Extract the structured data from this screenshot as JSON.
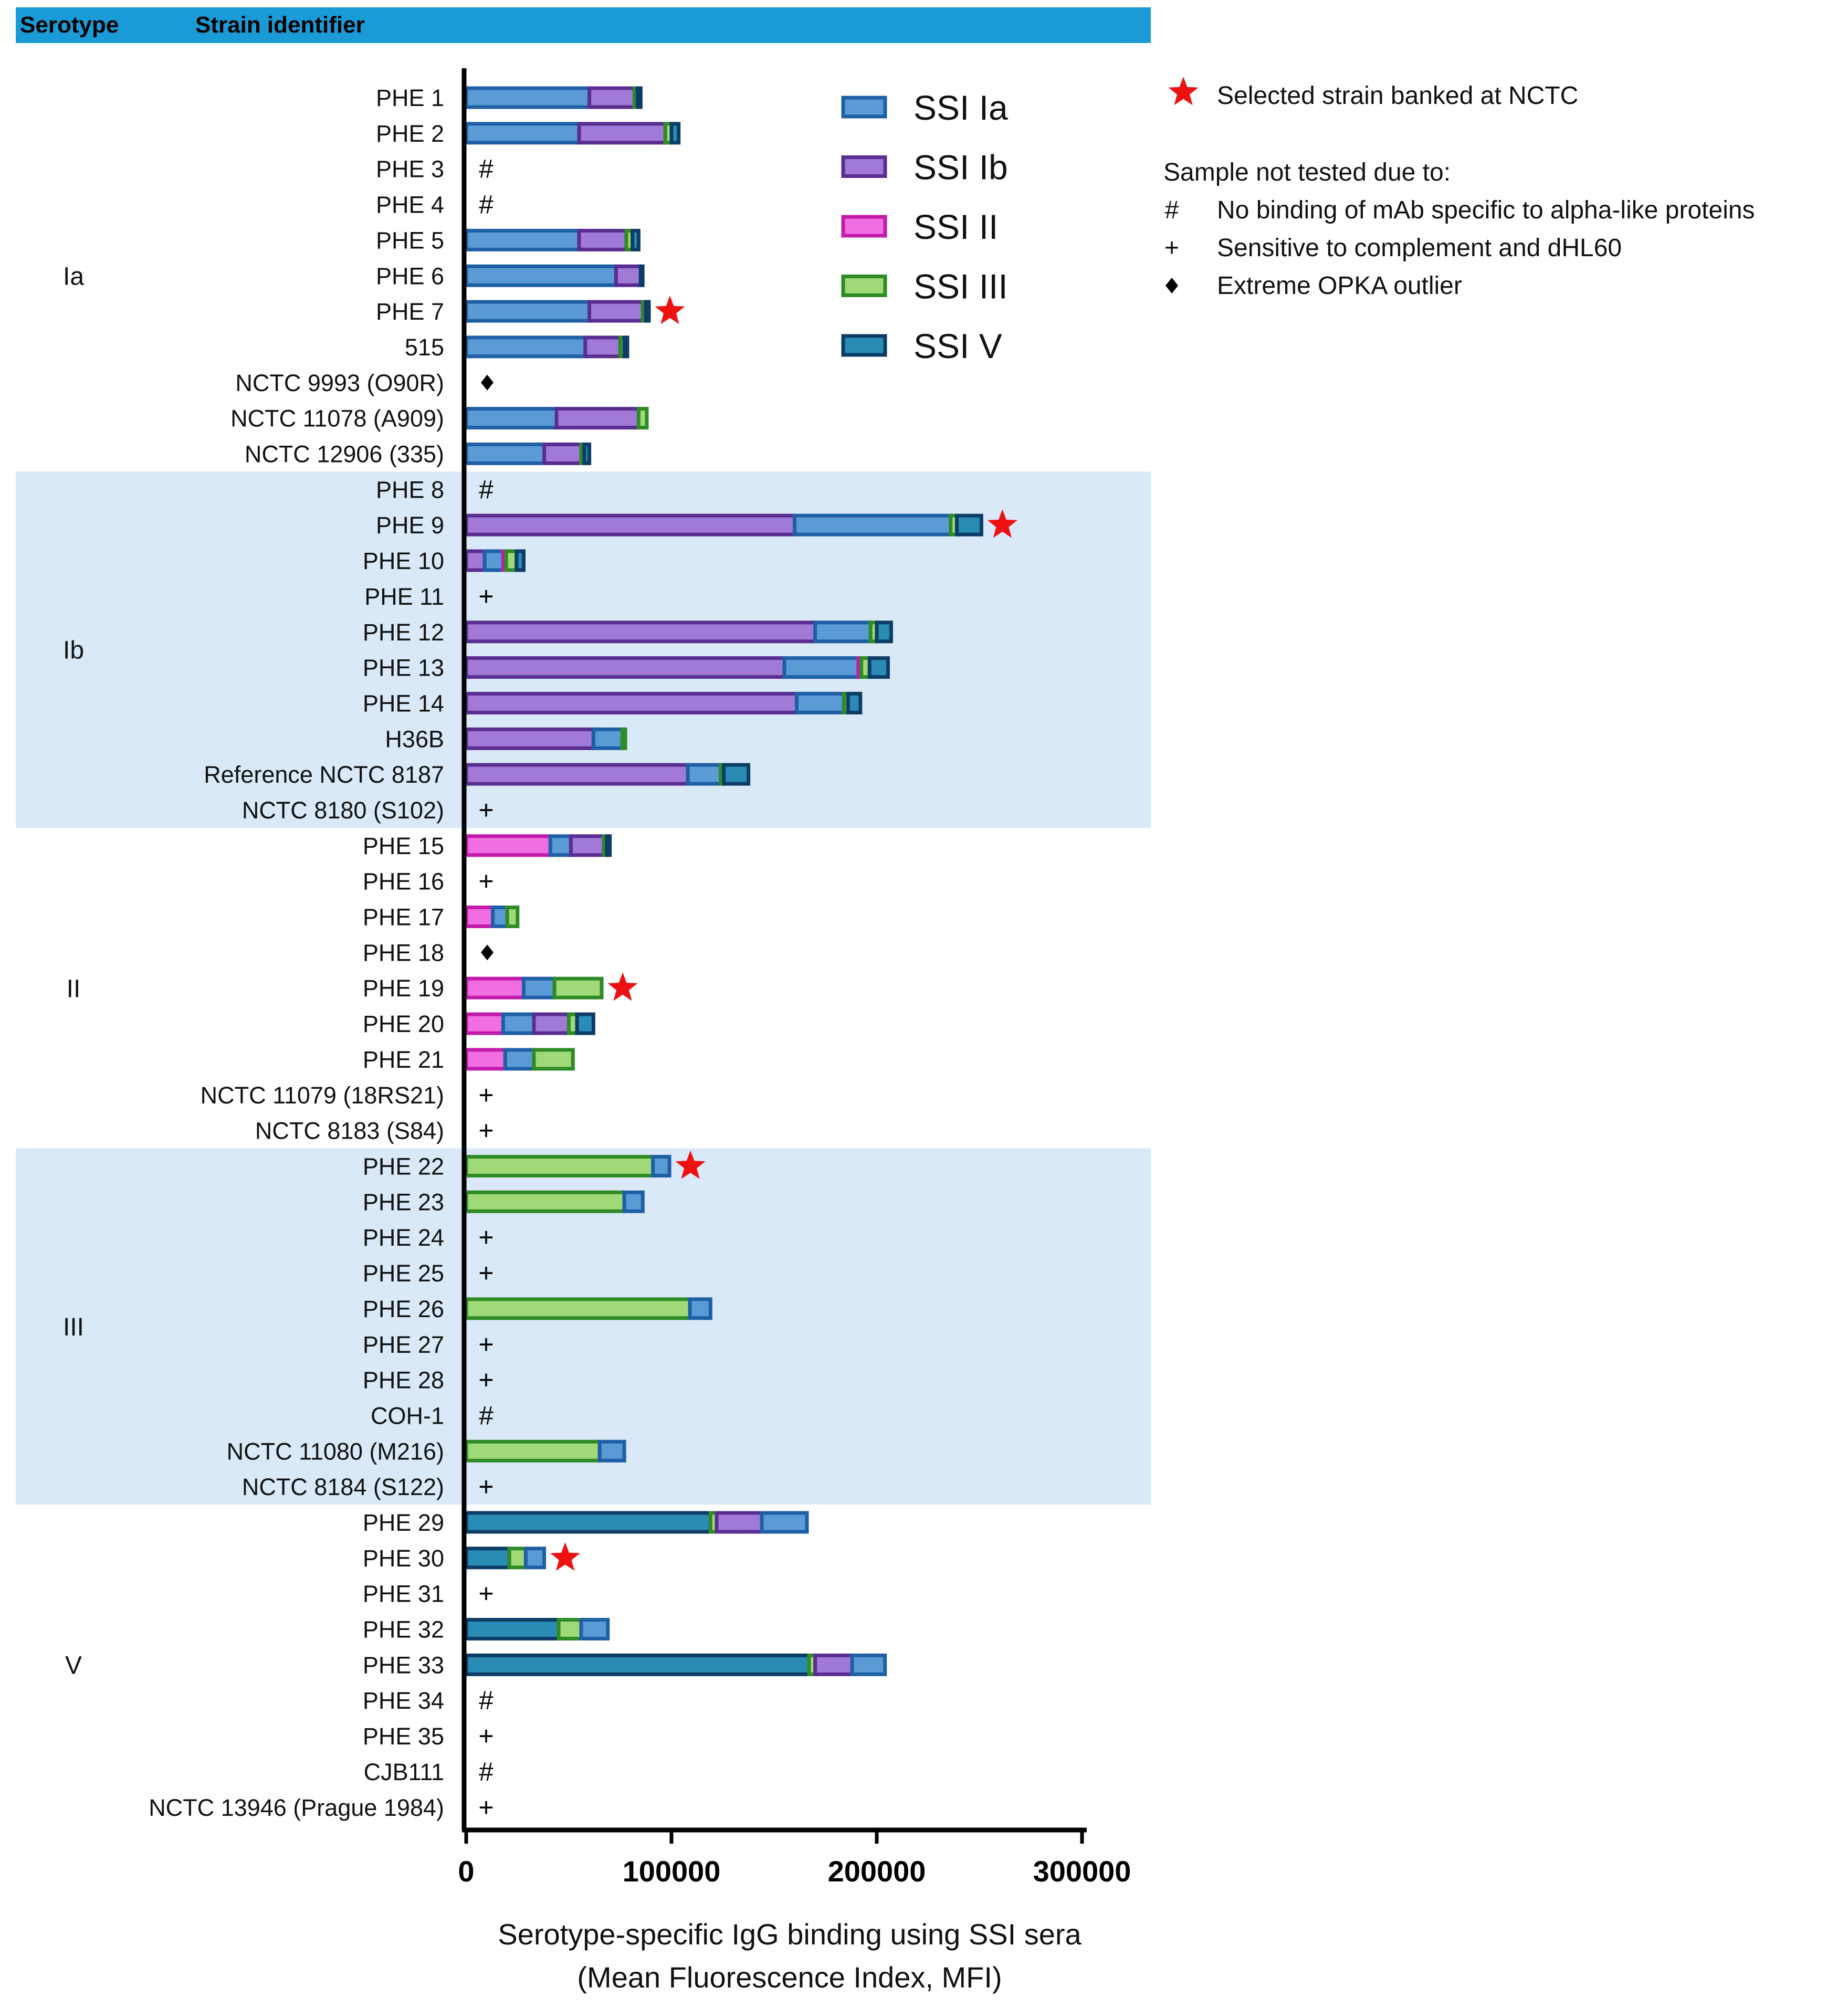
{
  "chart_data": {
    "type": "bar",
    "orientation": "horizontal",
    "stacked": true,
    "header": {
      "serotype_label": "Serotype",
      "strain_label": "Strain identifier"
    },
    "xlabel_line1": "Serotype-specific IgG binding using SSI sera",
    "xlabel_line2": "(Mean Fluorescence Index, MFI)",
    "xlim": [
      0,
      300000
    ],
    "xticks": [
      "0",
      "100000",
      "200000",
      "300000"
    ],
    "xtick_values": [
      0,
      100000,
      200000,
      300000
    ],
    "legend_position": "top-right",
    "series": [
      {
        "name": "SSI Ia",
        "fill": "#5b9bd5",
        "edge": "#1f5fa6"
      },
      {
        "name": "SSI Ib",
        "fill": "#a07ad6",
        "edge": "#5a2e91"
      },
      {
        "name": "SSI II",
        "fill": "#f06ee0",
        "edge": "#c21bab"
      },
      {
        "name": "SSI III",
        "fill": "#9fd978",
        "edge": "#2e8b25"
      },
      {
        "name": "SSI V",
        "fill": "#2a8cb5",
        "edge": "#0d3d66"
      }
    ],
    "notes": {
      "selected": "Selected strain banked at NCTC",
      "not_tested_title": "Sample not tested due to:",
      "reasons": [
        {
          "symbol": "#",
          "text": "No binding of mAb specific to alpha-like proteins"
        },
        {
          "symbol": "+",
          "text": "Sensitive to complement and dHL60"
        },
        {
          "symbol": "◆",
          "text": "Extreme OPKA outlier"
        }
      ]
    },
    "groups": [
      {
        "serotype": "Ia",
        "shaded": false,
        "strains": [
          {
            "label": "PHE 1",
            "segments": [
              [
                "SSI Ia",
                60000
              ],
              [
                "SSI Ib",
                22000
              ],
              [
                "SSI III",
                1500
              ],
              [
                "SSI V",
                1500
              ]
            ]
          },
          {
            "label": "PHE 2",
            "segments": [
              [
                "SSI Ia",
                55000
              ],
              [
                "SSI Ib",
                42000
              ],
              [
                "SSI III",
                3000
              ],
              [
                "SSI V",
                3500
              ]
            ]
          },
          {
            "label": "PHE 3",
            "marker": "#"
          },
          {
            "label": "PHE 4",
            "marker": "#"
          },
          {
            "label": "PHE 5",
            "segments": [
              [
                "SSI Ia",
                55000
              ],
              [
                "SSI Ib",
                23000
              ],
              [
                "SSI III",
                3000
              ],
              [
                "SSI V",
                3000
              ]
            ]
          },
          {
            "label": "PHE 6",
            "segments": [
              [
                "SSI Ia",
                73000
              ],
              [
                "SSI Ib",
                12000
              ],
              [
                "SSI V",
                1000
              ]
            ]
          },
          {
            "label": "PHE 7",
            "segments": [
              [
                "SSI Ia",
                60000
              ],
              [
                "SSI Ib",
                26000
              ],
              [
                "SSI III",
                1500
              ],
              [
                "SSI V",
                1500
              ]
            ],
            "selected": true
          },
          {
            "label": "515",
            "segments": [
              [
                "SSI Ia",
                58000
              ],
              [
                "SSI Ib",
                17000
              ],
              [
                "SSI III",
                2000
              ],
              [
                "SSI V",
                1500
              ]
            ]
          },
          {
            "label": "NCTC 9993 (O90R)",
            "marker": "◆"
          },
          {
            "label": "NCTC 11078 (A909)",
            "segments": [
              [
                "SSI Ia",
                44000
              ],
              [
                "SSI Ib",
                40000
              ],
              [
                "SSI III",
                4000
              ]
            ]
          },
          {
            "label": "NCTC 12906 (335)",
            "segments": [
              [
                "SSI Ia",
                38000
              ],
              [
                "SSI Ib",
                18000
              ],
              [
                "SSI III",
                1500
              ],
              [
                "SSI V",
                2500
              ]
            ]
          }
        ]
      },
      {
        "serotype": "Ib",
        "shaded": true,
        "strains": [
          {
            "label": "PHE 8",
            "marker": "#"
          },
          {
            "label": "PHE 9",
            "segments": [
              [
                "SSI Ib",
                160000
              ],
              [
                "SSI Ia",
                76000
              ],
              [
                "SSI III",
                3000
              ],
              [
                "SSI V",
                12000
              ]
            ],
            "selected": true
          },
          {
            "label": "PHE 10",
            "segments": [
              [
                "SSI Ib",
                9000
              ],
              [
                "SSI Ia",
                9000
              ],
              [
                "SSI II",
                1500
              ],
              [
                "SSI III",
                5000
              ],
              [
                "SSI V",
                3500
              ]
            ]
          },
          {
            "label": "PHE 11",
            "marker": "+"
          },
          {
            "label": "PHE 12",
            "segments": [
              [
                "SSI Ib",
                170000
              ],
              [
                "SSI Ia",
                27000
              ],
              [
                "SSI III",
                3000
              ],
              [
                "SSI V",
                7000
              ]
            ]
          },
          {
            "label": "PHE 13",
            "segments": [
              [
                "SSI Ib",
                155000
              ],
              [
                "SSI Ia",
                36000
              ],
              [
                "SSI II",
                1500
              ],
              [
                "SSI III",
                4000
              ],
              [
                "SSI V",
                9000
              ]
            ]
          },
          {
            "label": "PHE 14",
            "segments": [
              [
                "SSI Ib",
                161000
              ],
              [
                "SSI Ia",
                23000
              ],
              [
                "SSI III",
                2000
              ],
              [
                "SSI V",
                6000
              ]
            ]
          },
          {
            "label": "H36B",
            "segments": [
              [
                "SSI Ib",
                62000
              ],
              [
                "SSI Ia",
                14000
              ],
              [
                "SSI III",
                1500
              ]
            ]
          },
          {
            "label": "Reference NCTC 8187",
            "segments": [
              [
                "SSI Ib",
                108000
              ],
              [
                "SSI Ia",
                16000
              ],
              [
                "SSI III",
                1500
              ],
              [
                "SSI V",
                12000
              ]
            ]
          },
          {
            "label": "NCTC 8180 (S102)",
            "marker": "+"
          }
        ]
      },
      {
        "serotype": "II",
        "shaded": false,
        "strains": [
          {
            "label": "PHE 15",
            "segments": [
              [
                "SSI II",
                41000
              ],
              [
                "SSI Ia",
                10000
              ],
              [
                "SSI Ib",
                16000
              ],
              [
                "SSI III",
                1500
              ],
              [
                "SSI V",
                1500
              ]
            ]
          },
          {
            "label": "PHE 16",
            "marker": "+"
          },
          {
            "label": "PHE 17",
            "segments": [
              [
                "SSI II",
                13000
              ],
              [
                "SSI Ia",
                7000
              ],
              [
                "SSI III",
                5000
              ]
            ]
          },
          {
            "label": "PHE 18",
            "marker": "◆"
          },
          {
            "label": "PHE 19",
            "segments": [
              [
                "SSI II",
                28000
              ],
              [
                "SSI Ia",
                15000
              ],
              [
                "SSI III",
                23000
              ]
            ],
            "selected": true
          },
          {
            "label": "PHE 20",
            "segments": [
              [
                "SSI II",
                18000
              ],
              [
                "SSI Ia",
                15000
              ],
              [
                "SSI Ib",
                17000
              ],
              [
                "SSI III",
                4000
              ],
              [
                "SSI V",
                8000
              ]
            ]
          },
          {
            "label": "PHE 21",
            "segments": [
              [
                "SSI II",
                19000
              ],
              [
                "SSI Ia",
                14000
              ],
              [
                "SSI III",
                19000
              ]
            ]
          },
          {
            "label": "NCTC 11079 (18RS21)",
            "marker": "+"
          },
          {
            "label": "NCTC 8183 (S84)",
            "marker": "+"
          }
        ]
      },
      {
        "serotype": "III",
        "shaded": true,
        "strains": [
          {
            "label": "PHE 22",
            "segments": [
              [
                "SSI III",
                91000
              ],
              [
                "SSI Ia",
                8000
              ]
            ],
            "selected": true
          },
          {
            "label": "PHE 23",
            "segments": [
              [
                "SSI III",
                77000
              ],
              [
                "SSI Ia",
                9000
              ]
            ]
          },
          {
            "label": "PHE 24",
            "marker": "+"
          },
          {
            "label": "PHE 25",
            "marker": "+"
          },
          {
            "label": "PHE 26",
            "segments": [
              [
                "SSI III",
                109000
              ],
              [
                "SSI Ia",
                10000
              ]
            ]
          },
          {
            "label": "PHE 27",
            "marker": "+"
          },
          {
            "label": "PHE 28",
            "marker": "+"
          },
          {
            "label": "COH-1",
            "marker": "#"
          },
          {
            "label": "NCTC 11080 (M216)",
            "segments": [
              [
                "SSI III",
                65000
              ],
              [
                "SSI Ia",
                12000
              ]
            ]
          },
          {
            "label": "NCTC 8184 (S122)",
            "marker": "+"
          }
        ]
      },
      {
        "serotype": "V",
        "shaded": false,
        "strains": [
          {
            "label": "PHE 29",
            "segments": [
              [
                "SSI V",
                119000
              ],
              [
                "SSI III",
                3000
              ],
              [
                "SSI Ib",
                22000
              ],
              [
                "SSI Ia",
                22000
              ]
            ]
          },
          {
            "label": "PHE 30",
            "segments": [
              [
                "SSI V",
                21000
              ],
              [
                "SSI III",
                8000
              ],
              [
                "SSI Ia",
                9000
              ]
            ],
            "selected": true
          },
          {
            "label": "PHE 31",
            "marker": "+"
          },
          {
            "label": "PHE 32",
            "segments": [
              [
                "SSI V",
                45000
              ],
              [
                "SSI III",
                11000
              ],
              [
                "SSI Ia",
                13000
              ]
            ]
          },
          {
            "label": "PHE 33",
            "segments": [
              [
                "SSI V",
                167000
              ],
              [
                "SSI III",
                3000
              ],
              [
                "SSI Ib",
                18000
              ],
              [
                "SSI Ia",
                16000
              ]
            ]
          },
          {
            "label": "PHE 34",
            "marker": "#"
          },
          {
            "label": "PHE 35",
            "marker": "+"
          },
          {
            "label": "CJB111",
            "marker": "#"
          },
          {
            "label": "NCTC 13946 (Prague 1984)",
            "marker": "+"
          }
        ]
      }
    ]
  }
}
